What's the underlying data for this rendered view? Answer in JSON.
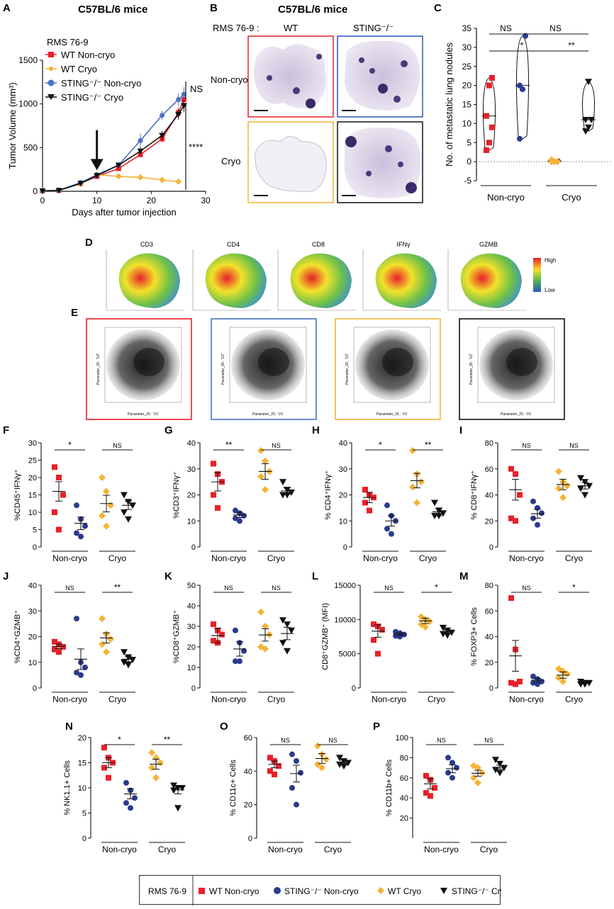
{
  "colors": {
    "wt_noncryo": "#e8202a",
    "sting_noncryo": "#2b3a8e",
    "wt_cryo": "#f5b335",
    "sting_cryo": "#111111",
    "sting_line_A": "#4a73c4",
    "heat_high": "#e8202a",
    "heat_mid": "#f2e22a",
    "heat_green": "#5bb84a",
    "heat_low": "#2b55c0"
  },
  "panel_labels": {
    "A": "A",
    "B": "B",
    "C": "C",
    "D": "D",
    "E": "E",
    "F": "F",
    "G": "G",
    "H": "H",
    "I": "I",
    "J": "J",
    "K": "K",
    "L": "L",
    "M": "M",
    "N": "N",
    "O": "O",
    "P": "P"
  },
  "panelA": {
    "title": "C57BL/6 mice",
    "legend_title": "RMS 76-9",
    "legend": [
      "WT Non-cryo",
      "WT Cryo",
      "STING⁻/⁻ Non-cryo",
      "STING⁻/⁻ Cryo"
    ],
    "sig_ns": "NS",
    "sig_main": "****"
  },
  "panelB": {
    "title": "C57BL/6 mice",
    "row_label": "RMS 76-9 :",
    "col_labels": [
      "WT",
      "STING⁻/⁻"
    ],
    "row_names": [
      "Non-cryo",
      "Cryo"
    ]
  },
  "panelD": {
    "markers": [
      "CD3",
      "CD4",
      "CD8",
      "IFNγ",
      "GZMB"
    ],
    "scale_high": "High",
    "scale_low": "Low"
  },
  "panelE": {
    "axis_x": "Parameter_25 : 'V1'",
    "axis_y": "Parameter_26 : 'V2'"
  },
  "groups": [
    "Non-cryo",
    "Cryo"
  ],
  "legend_bottom": {
    "title": "RMS 76-9",
    "items": [
      "WT Non-cryo",
      "STING⁻/⁻ Non-cryo",
      "WT Cryo",
      "STING⁻/⁻ Cryo"
    ]
  },
  "chart_data": [
    {
      "id": "A",
      "type": "line",
      "xlabel": "Days after tumor injection",
      "ylabel": "Tumor Volume (mm³)",
      "xlim": [
        0,
        30
      ],
      "ylim": [
        0,
        1500
      ],
      "xticks": [
        0,
        10,
        20,
        30
      ],
      "yticks": [
        0,
        500,
        1000,
        1500
      ],
      "arrow_at_day": 10,
      "series": [
        {
          "name": "WT Non-cryo",
          "x": [
            0,
            3,
            7,
            10,
            14,
            18,
            22,
            25,
            26
          ],
          "y": [
            5,
            10,
            90,
            170,
            260,
            420,
            600,
            900,
            1050
          ],
          "err": [
            3,
            4,
            12,
            20,
            25,
            35,
            40,
            60,
            70
          ]
        },
        {
          "name": "WT Cryo",
          "x": [
            0,
            3,
            7,
            10,
            14,
            18,
            22,
            25
          ],
          "y": [
            5,
            10,
            85,
            190,
            170,
            160,
            130,
            110
          ],
          "err": [
            3,
            4,
            12,
            40,
            25,
            20,
            15,
            12
          ]
        },
        {
          "name": "STING⁻/⁻ Non-cryo",
          "x": [
            0,
            3,
            7,
            10,
            14,
            18,
            22,
            25,
            26
          ],
          "y": [
            5,
            12,
            100,
            190,
            300,
            580,
            870,
            1050,
            1110
          ],
          "err": [
            3,
            4,
            15,
            30,
            30,
            80,
            50,
            70,
            80
          ]
        },
        {
          "name": "STING⁻/⁻ Cryo",
          "x": [
            0,
            3,
            7,
            10,
            14,
            18,
            22,
            25,
            26
          ],
          "y": [
            5,
            10,
            90,
            180,
            300,
            460,
            640,
            880,
            980
          ],
          "err": [
            3,
            4,
            12,
            25,
            30,
            40,
            50,
            60,
            70
          ]
        }
      ]
    },
    {
      "id": "C",
      "type": "violin",
      "ylabel": "No. of metastatic lung nodules",
      "ylim": [
        -5,
        35
      ],
      "yticks": [
        -5,
        0,
        5,
        10,
        15,
        20,
        25,
        30,
        35
      ],
      "groups": [
        {
          "name": "WT Non-cryo",
          "values": [
            3,
            5,
            9,
            12,
            20,
            22
          ]
        },
        {
          "name": "STING⁻/⁻ Non-cryo",
          "values": [
            6,
            19,
            33,
            20
          ]
        },
        {
          "name": "WT Cryo",
          "values": [
            0,
            0,
            0,
            0.5,
            0
          ]
        },
        {
          "name": "STING⁻/⁻ Cryo",
          "values": [
            8,
            9,
            11,
            11,
            21
          ]
        }
      ],
      "sig": [
        {
          "label": "NS",
          "a": 0,
          "b": 1,
          "level": 2
        },
        {
          "label": "NS",
          "a": 1,
          "b": 3,
          "level": 2
        },
        {
          "label": "*",
          "a": 0,
          "b": 2,
          "level": 1
        },
        {
          "label": "**",
          "a": 2,
          "b": 3,
          "level": 1
        }
      ],
      "xgroups": [
        "Non-cryo",
        "Cryo"
      ]
    },
    {
      "id": "F",
      "type": "scatter",
      "ylabel": "%CD45⁺IFNγ⁺",
      "ylim": [
        0,
        30
      ],
      "yticks": [
        0,
        5,
        10,
        15,
        20,
        25,
        30
      ],
      "groups": [
        [
          23,
          20,
          15,
          10,
          5
        ],
        [
          12,
          8,
          6,
          4,
          3
        ],
        [
          20,
          16,
          12,
          9,
          6
        ],
        [
          15,
          13,
          12,
          10,
          8
        ]
      ],
      "means": [
        16,
        6.8,
        12.5,
        12
      ],
      "sems": [
        2.8,
        1.8,
        2.4,
        1.2
      ],
      "sig": [
        {
          "label": "*",
          "a": 0,
          "b": 1
        },
        {
          "label": "NS",
          "a": 2,
          "b": 3
        }
      ]
    },
    {
      "id": "G",
      "type": "scatter",
      "ylabel": "%CD3⁺IFNγ⁺",
      "ylim": [
        0,
        40
      ],
      "yticks": [
        0,
        10,
        20,
        30,
        40
      ],
      "groups": [
        [
          32,
          28,
          25,
          20,
          15
        ],
        [
          14,
          13,
          12,
          11,
          10
        ],
        [
          37,
          33,
          29,
          27,
          22
        ],
        [
          25,
          22,
          21,
          20,
          20
        ]
      ],
      "means": [
        25,
        12.3,
        29,
        21.5
      ],
      "sems": [
        3.5,
        1,
        3,
        1.2
      ],
      "sig": [
        {
          "label": "**",
          "a": 0,
          "b": 1
        },
        {
          "label": "NS",
          "a": 2,
          "b": 3
        }
      ]
    },
    {
      "id": "H",
      "type": "scatter",
      "ylabel": "% CD4⁺IFNγ⁺",
      "ylim": [
        0,
        40
      ],
      "yticks": [
        0,
        10,
        20,
        30,
        40
      ],
      "groups": [
        [
          22,
          20,
          19,
          17,
          14
        ],
        [
          16,
          12,
          10,
          7,
          5
        ],
        [
          37,
          28,
          25,
          23,
          17
        ],
        [
          17,
          14,
          13,
          12,
          12
        ]
      ],
      "means": [
        19,
        10,
        25.5,
        13.5
      ],
      "sems": [
        2,
        2,
        2.8,
        1.5
      ],
      "sig": [
        {
          "label": "*",
          "a": 0,
          "b": 1
        },
        {
          "label": "**",
          "a": 2,
          "b": 3
        }
      ]
    },
    {
      "id": "I",
      "type": "scatter",
      "ylabel": "% CD8⁺IFNγ⁺",
      "ylim": [
        0,
        80
      ],
      "yticks": [
        0,
        20,
        40,
        60,
        80
      ],
      "groups": [
        [
          60,
          56,
          40,
          22,
          20
        ],
        [
          35,
          30,
          26,
          22,
          17
        ],
        [
          58,
          50,
          47,
          45,
          38
        ],
        [
          53,
          50,
          47,
          45,
          40
        ]
      ],
      "means": [
        44,
        25.5,
        48,
        47
      ],
      "sems": [
        8,
        3.5,
        4,
        2.5
      ],
      "sig": [
        {
          "label": "NS",
          "a": 0,
          "b": 1
        },
        {
          "label": "NS",
          "a": 2,
          "b": 3
        }
      ]
    },
    {
      "id": "J",
      "type": "scatter",
      "ylabel": "%CD4⁺GZMB⁺",
      "ylim": [
        0,
        40
      ],
      "yticks": [
        0,
        10,
        20,
        30,
        40
      ],
      "groups": [
        [
          18,
          17,
          16,
          15,
          14
        ],
        [
          27,
          10,
          8,
          6,
          5
        ],
        [
          27,
          21,
          19,
          17,
          14
        ],
        [
          14,
          12,
          11,
          10,
          9
        ]
      ],
      "means": [
        16.2,
        11.2,
        19.5,
        11.2
      ],
      "sems": [
        0.9,
        4,
        2,
        1
      ],
      "sig": [
        {
          "label": "NS",
          "a": 0,
          "b": 1
        },
        {
          "label": "**",
          "a": 2,
          "b": 3
        }
      ]
    },
    {
      "id": "K",
      "type": "scatter",
      "ylabel": "%CD8⁺GZMB⁺",
      "ylim": [
        0,
        50
      ],
      "yticks": [
        0,
        10,
        20,
        30,
        40,
        50
      ],
      "groups": [
        [
          31,
          28,
          26,
          23,
          22
        ],
        [
          28,
          22,
          18,
          13,
          13
        ],
        [
          37,
          30,
          26,
          20,
          19
        ],
        [
          33,
          31,
          28,
          22,
          18
        ]
      ],
      "means": [
        25.5,
        19,
        25.8,
        26.5
      ],
      "sems": [
        3.5,
        3.5,
        3,
        3
      ],
      "sig": [
        {
          "label": "NS",
          "a": 0,
          "b": 1
        },
        {
          "label": "NS",
          "a": 2,
          "b": 3
        }
      ]
    },
    {
      "id": "L",
      "type": "scatter",
      "ylabel": "CD8⁺GZMB⁺ (MFI)",
      "ylim": [
        0,
        15000
      ],
      "yticks": [
        0,
        5000,
        10000,
        15000
      ],
      "groups": [
        [
          9300,
          9000,
          8500,
          7000,
          5000
        ],
        [
          8200,
          8000,
          7800,
          7600,
          7500
        ],
        [
          10400,
          10000,
          9700,
          9300,
          8900
        ],
        [
          8800,
          8400,
          8100,
          7900,
          7700
        ]
      ],
      "means": [
        8300,
        7850,
        9800,
        8200
      ],
      "sems": [
        900,
        200,
        400,
        250
      ],
      "sig": [
        {
          "label": "NS",
          "a": 0,
          "b": 1
        },
        {
          "label": "*",
          "a": 2,
          "b": 3
        }
      ]
    },
    {
      "id": "M",
      "type": "scatter",
      "ylabel": "% FOXP3+ Cells",
      "ylim": [
        0,
        80
      ],
      "yticks": [
        0,
        20,
        40,
        60,
        80
      ],
      "groups": [
        [
          70,
          30,
          5,
          4,
          3
        ],
        [
          9,
          7,
          5,
          4,
          3
        ],
        [
          15,
          13,
          11,
          8,
          5
        ],
        [
          5,
          4,
          4,
          3,
          3
        ]
      ],
      "means": [
        25,
        6,
        10,
        4
      ],
      "sems": [
        12,
        1.5,
        2.5,
        0.5
      ],
      "sig": [
        {
          "label": "NS",
          "a": 0,
          "b": 1
        },
        {
          "label": "*",
          "a": 2,
          "b": 3
        }
      ]
    },
    {
      "id": "N",
      "type": "scatter",
      "ylabel": "% NK1.1+ Cells",
      "ylim": [
        0,
        20
      ],
      "yticks": [
        0,
        5,
        10,
        15,
        20
      ],
      "groups": [
        [
          18,
          16,
          15,
          14,
          12
        ],
        [
          11,
          9.5,
          8,
          7,
          6
        ],
        [
          17,
          16,
          15,
          14,
          12
        ],
        [
          10.5,
          10,
          10,
          9.5,
          6
        ]
      ],
      "means": [
        15,
        8.8,
        14.7,
        9.6
      ],
      "sems": [
        1,
        1,
        1,
        0.8
      ],
      "sig": [
        {
          "label": "*",
          "a": 0,
          "b": 1
        },
        {
          "label": "**",
          "a": 2,
          "b": 3
        }
      ]
    },
    {
      "id": "O",
      "type": "scatter",
      "ylabel": "% CD11c+ Cells",
      "ylim": [
        0,
        60
      ],
      "yticks": [
        0,
        20,
        40,
        60
      ],
      "groups": [
        [
          48,
          46,
          43,
          40,
          38
        ],
        [
          50,
          46,
          39,
          30,
          20
        ],
        [
          55,
          50,
          47,
          44,
          42
        ],
        [
          48,
          46,
          45,
          44,
          43
        ]
      ],
      "means": [
        44,
        38.5,
        47.5,
        45
      ],
      "sems": [
        2,
        5,
        3,
        1.5
      ],
      "sig": [
        {
          "label": "NS",
          "a": 0,
          "b": 1
        },
        {
          "label": "NS",
          "a": 2,
          "b": 3
        }
      ]
    },
    {
      "id": "P",
      "type": "scatter",
      "ylabel": "% CD11b+ Cells",
      "ylim": [
        0,
        100
      ],
      "yticks": [
        20,
        40,
        60,
        80,
        100
      ],
      "groups": [
        [
          62,
          58,
          50,
          45,
          42
        ],
        [
          80,
          75,
          70,
          65,
          60
        ],
        [
          72,
          70,
          65,
          60,
          55
        ],
        [
          78,
          74,
          70,
          68,
          65
        ]
      ],
      "means": [
        54,
        69,
        64.5,
        70.5
      ],
      "sems": [
        5,
        4,
        3,
        2
      ],
      "sig": [
        {
          "label": "NS",
          "a": 0,
          "b": 1
        },
        {
          "label": "NS",
          "a": 2,
          "b": 3
        }
      ]
    }
  ]
}
